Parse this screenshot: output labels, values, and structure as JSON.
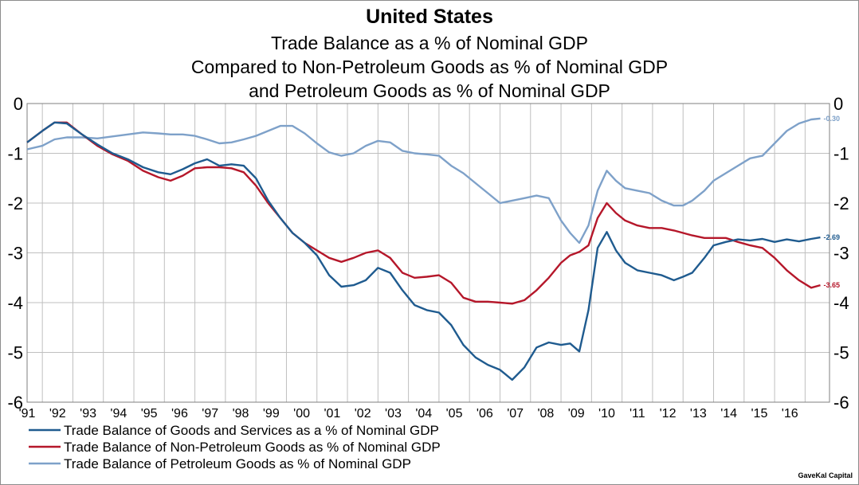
{
  "chart_data": {
    "type": "line",
    "title": "United States",
    "subtitle": [
      "Trade Balance as a % of Nominal GDP",
      "Compared to Non-Petroleum Goods as % of Nominal GDP",
      "and Petroleum Goods as % of Nominal GDP"
    ],
    "ylim": [
      -6,
      0
    ],
    "yticks": [
      "0",
      "-1",
      "-2",
      "-3",
      "-4",
      "-5",
      "-6"
    ],
    "xlim": [
      1990.5,
      2016.8
    ],
    "xticks": [
      "'91",
      "'92",
      "'93",
      "'94",
      "'95",
      "'96",
      "'97",
      "'98",
      "'99",
      "'00",
      "'01",
      "'02",
      "'03",
      "'04",
      "'05",
      "'06",
      "'07",
      "'08",
      "'09",
      "'10",
      "'11",
      "'12",
      "'13",
      "'14",
      "'15",
      "'16"
    ],
    "grid": true,
    "legend_position": "bottom-left",
    "series": [
      {
        "name": "Trade Balance of Goods and Services as a % of Nominal GDP",
        "color": "#1f5b8f",
        "end_label": "-2.69",
        "x": [
          1990.5,
          1991.0,
          1991.4,
          1991.8,
          1992.3,
          1992.8,
          1993.3,
          1993.8,
          1994.3,
          1994.8,
          1995.2,
          1995.6,
          1996.0,
          1996.4,
          1996.8,
          1997.2,
          1997.6,
          1998.0,
          1998.4,
          1998.8,
          1999.2,
          1999.6,
          2000.0,
          2000.4,
          2000.8,
          2001.2,
          2001.6,
          2002.0,
          2002.4,
          2002.8,
          2003.2,
          2003.6,
          2004.0,
          2004.4,
          2004.8,
          2005.2,
          2005.6,
          2006.0,
          2006.4,
          2006.8,
          2007.2,
          2007.6,
          2008.0,
          2008.3,
          2008.6,
          2008.9,
          2009.2,
          2009.5,
          2009.8,
          2010.1,
          2010.5,
          2010.9,
          2011.3,
          2011.7,
          2012.0,
          2012.3,
          2012.7,
          2013.0,
          2013.4,
          2013.8,
          2014.2,
          2014.6,
          2015.0,
          2015.4,
          2015.8,
          2016.2,
          2016.5
        ],
        "values": [
          -0.78,
          -0.55,
          -0.38,
          -0.4,
          -0.62,
          -0.82,
          -1.0,
          -1.12,
          -1.28,
          -1.38,
          -1.42,
          -1.32,
          -1.2,
          -1.12,
          -1.25,
          -1.22,
          -1.25,
          -1.5,
          -1.95,
          -2.3,
          -2.6,
          -2.8,
          -3.05,
          -3.45,
          -3.68,
          -3.65,
          -3.55,
          -3.3,
          -3.4,
          -3.75,
          -4.05,
          -4.15,
          -4.2,
          -4.45,
          -4.85,
          -5.1,
          -5.25,
          -5.35,
          -5.55,
          -5.3,
          -4.9,
          -4.8,
          -4.85,
          -4.82,
          -4.98,
          -4.15,
          -2.9,
          -2.58,
          -2.95,
          -3.2,
          -3.35,
          -3.4,
          -3.45,
          -3.55,
          -3.48,
          -3.4,
          -3.1,
          -2.85,
          -2.78,
          -2.73,
          -2.75,
          -2.72,
          -2.78,
          -2.73,
          -2.77,
          -2.72,
          -2.69
        ]
      },
      {
        "name": "Trade Balance of Non-Petroleum Goods as % of Nominal GDP",
        "color": "#b5172a",
        "end_label": "-3.65",
        "x": [
          1990.5,
          1991.0,
          1991.4,
          1991.8,
          1992.3,
          1992.8,
          1993.3,
          1993.8,
          1994.3,
          1994.8,
          1995.2,
          1995.6,
          1996.0,
          1996.4,
          1996.8,
          1997.2,
          1997.6,
          1998.0,
          1998.4,
          1998.8,
          1999.2,
          1999.6,
          2000.0,
          2000.4,
          2000.8,
          2001.2,
          2001.6,
          2002.0,
          2002.4,
          2002.8,
          2003.2,
          2003.6,
          2004.0,
          2004.4,
          2004.8,
          2005.2,
          2005.6,
          2006.0,
          2006.4,
          2006.8,
          2007.2,
          2007.6,
          2008.0,
          2008.3,
          2008.6,
          2008.9,
          2009.2,
          2009.5,
          2009.8,
          2010.1,
          2010.5,
          2010.9,
          2011.3,
          2011.7,
          2012.0,
          2012.3,
          2012.7,
          2013.0,
          2013.4,
          2013.8,
          2014.2,
          2014.6,
          2015.0,
          2015.4,
          2015.8,
          2016.2,
          2016.5
        ],
        "values": [
          -0.78,
          -0.55,
          -0.38,
          -0.38,
          -0.62,
          -0.85,
          -1.02,
          -1.15,
          -1.35,
          -1.48,
          -1.55,
          -1.45,
          -1.3,
          -1.28,
          -1.28,
          -1.3,
          -1.38,
          -1.65,
          -2.0,
          -2.3,
          -2.6,
          -2.8,
          -2.95,
          -3.1,
          -3.18,
          -3.1,
          -3.0,
          -2.95,
          -3.1,
          -3.4,
          -3.5,
          -3.48,
          -3.45,
          -3.6,
          -3.9,
          -3.98,
          -3.98,
          -4.0,
          -4.02,
          -3.95,
          -3.75,
          -3.5,
          -3.2,
          -3.05,
          -2.98,
          -2.85,
          -2.3,
          -2.0,
          -2.2,
          -2.35,
          -2.45,
          -2.5,
          -2.5,
          -2.55,
          -2.6,
          -2.65,
          -2.7,
          -2.7,
          -2.7,
          -2.78,
          -2.85,
          -2.9,
          -3.1,
          -3.35,
          -3.55,
          -3.7,
          -3.65
        ]
      },
      {
        "name": "Trade Balance of Petroleum Goods as % of Nominal GDP",
        "color": "#7ea1c9",
        "end_label": "-0.30",
        "x": [
          1990.5,
          1991.0,
          1991.4,
          1991.8,
          1992.3,
          1992.8,
          1993.3,
          1993.8,
          1994.3,
          1994.8,
          1995.2,
          1995.6,
          1996.0,
          1996.4,
          1996.8,
          1997.2,
          1997.6,
          1998.0,
          1998.4,
          1998.8,
          1999.2,
          1999.6,
          2000.0,
          2000.4,
          2000.8,
          2001.2,
          2001.6,
          2002.0,
          2002.4,
          2002.8,
          2003.2,
          2003.6,
          2004.0,
          2004.4,
          2004.8,
          2005.2,
          2005.6,
          2006.0,
          2006.4,
          2006.8,
          2007.2,
          2007.6,
          2008.0,
          2008.3,
          2008.6,
          2008.9,
          2009.2,
          2009.5,
          2009.8,
          2010.1,
          2010.5,
          2010.9,
          2011.3,
          2011.7,
          2012.0,
          2012.3,
          2012.7,
          2013.0,
          2013.4,
          2013.8,
          2014.2,
          2014.6,
          2015.0,
          2015.4,
          2015.8,
          2016.2,
          2016.5
        ],
        "values": [
          -0.92,
          -0.85,
          -0.72,
          -0.68,
          -0.68,
          -0.7,
          -0.66,
          -0.62,
          -0.58,
          -0.6,
          -0.62,
          -0.62,
          -0.65,
          -0.72,
          -0.8,
          -0.78,
          -0.72,
          -0.65,
          -0.55,
          -0.45,
          -0.45,
          -0.6,
          -0.8,
          -0.98,
          -1.05,
          -1.0,
          -0.85,
          -0.75,
          -0.78,
          -0.95,
          -1.0,
          -1.02,
          -1.05,
          -1.25,
          -1.4,
          -1.6,
          -1.8,
          -2.0,
          -1.95,
          -1.9,
          -1.85,
          -1.9,
          -2.35,
          -2.6,
          -2.8,
          -2.45,
          -1.75,
          -1.35,
          -1.55,
          -1.7,
          -1.75,
          -1.8,
          -1.95,
          -2.05,
          -2.05,
          -1.95,
          -1.75,
          -1.55,
          -1.4,
          -1.25,
          -1.1,
          -1.05,
          -0.8,
          -0.55,
          -0.4,
          -0.32,
          -0.3
        ]
      }
    ],
    "credit": "GaveKal Capital"
  }
}
